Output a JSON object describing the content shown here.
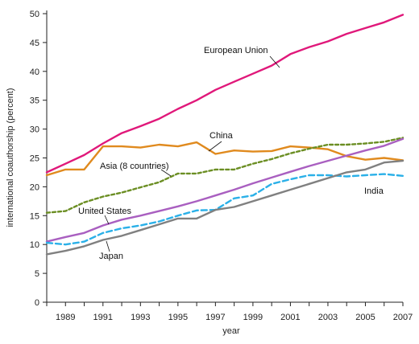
{
  "chart_data": {
    "type": "line",
    "title": "",
    "xlabel": "year",
    "ylabel": "international coauthorship (percent)",
    "xlim": [
      1988,
      2007
    ],
    "ylim": [
      0,
      50
    ],
    "x_ticks": [
      1989,
      1991,
      1993,
      1995,
      1997,
      1999,
      2001,
      2003,
      2005,
      2007
    ],
    "y_ticks": [
      0,
      5,
      10,
      15,
      20,
      25,
      30,
      35,
      40,
      45,
      50
    ],
    "grid": false,
    "x": [
      1988,
      1989,
      1990,
      1991,
      1992,
      1993,
      1994,
      1995,
      1996,
      1997,
      1998,
      1999,
      2000,
      2001,
      2002,
      2003,
      2004,
      2005,
      2006,
      2007
    ],
    "series": [
      {
        "name": "European Union",
        "color": "#e0187a",
        "dash": "solid",
        "values": [
          22.5,
          24.0,
          25.5,
          27.5,
          29.3,
          30.5,
          31.8,
          33.5,
          35.0,
          36.8,
          38.2,
          39.6,
          41.0,
          43.0,
          44.2,
          45.2,
          46.5,
          47.5,
          48.5,
          49.8
        ]
      },
      {
        "name": "China",
        "color": "#e08a1e",
        "dash": "solid",
        "values": [
          22.0,
          23.0,
          23.0,
          27.0,
          27.0,
          26.8,
          27.3,
          27.0,
          27.7,
          25.7,
          26.3,
          26.1,
          26.2,
          27.0,
          26.8,
          26.5,
          25.3,
          24.7,
          25.0,
          24.6
        ]
      },
      {
        "name": "Asia (8 countries)",
        "color": "#6b8e23",
        "dash": "dotted",
        "values": [
          15.5,
          15.8,
          17.3,
          18.3,
          19.0,
          19.9,
          20.8,
          22.3,
          22.3,
          23.0,
          23.0,
          24.0,
          24.8,
          25.8,
          26.6,
          27.3,
          27.3,
          27.5,
          27.8,
          28.5
        ]
      },
      {
        "name": "United States",
        "color": "#a95fc0",
        "dash": "solid",
        "values": [
          10.5,
          11.3,
          12.0,
          13.3,
          14.3,
          15.0,
          15.8,
          16.6,
          17.5,
          18.5,
          19.5,
          20.6,
          21.6,
          22.6,
          23.6,
          24.5,
          25.4,
          26.3,
          27.1,
          28.3
        ]
      },
      {
        "name": "India",
        "color": "#2ab0e8",
        "dash": "dashed",
        "values": [
          10.3,
          10.0,
          10.5,
          12.0,
          12.8,
          13.3,
          14.0,
          15.0,
          15.9,
          16.0,
          18.0,
          18.5,
          20.5,
          21.3,
          22.0,
          22.0,
          21.8,
          22.0,
          22.2,
          21.9
        ]
      },
      {
        "name": "Japan",
        "color": "#808080",
        "dash": "solid",
        "values": [
          8.3,
          8.9,
          9.7,
          10.8,
          11.5,
          12.5,
          13.5,
          14.5,
          14.5,
          16.0,
          16.5,
          17.5,
          18.5,
          19.5,
          20.5,
          21.5,
          22.5,
          23.0,
          24.2,
          24.5
        ]
      }
    ]
  }
}
